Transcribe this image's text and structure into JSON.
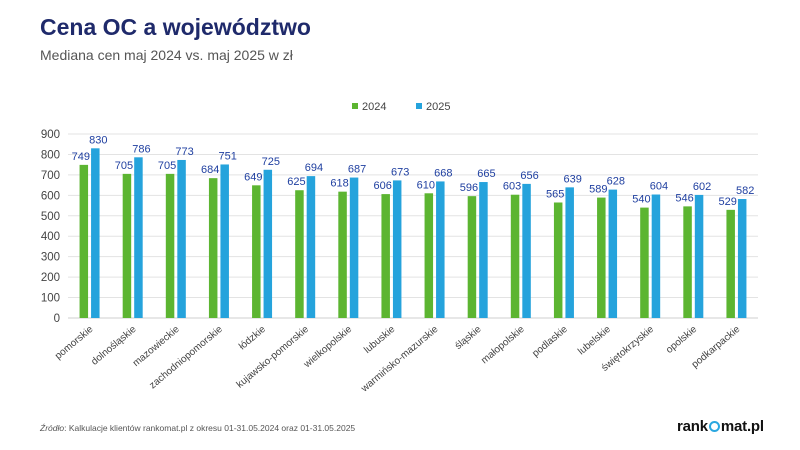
{
  "header": {
    "title": "Cena OC a województwo",
    "subtitle": "Mediana cen maj 2024 vs. maj 2025 w zł"
  },
  "footer": {
    "source_label": "Źródło",
    "source_text": ": Kalkulacje klientów rankomat.pl z okresu 01-31.05.2024 oraz 01-31.05.2025",
    "logo_left": "rank",
    "logo_right": "mat.pl"
  },
  "chart_data": {
    "type": "bar",
    "categories": [
      "pomorskie",
      "dolnośląskie",
      "mazowieckie",
      "zachodniopomorskie",
      "łódzkie",
      "kujawsko-pomorskie",
      "wielkopolskie",
      "lubuskie",
      "warmińsko-mazurskie",
      "śląskie",
      "małopolskie",
      "podlaskie",
      "lubelskie",
      "świętokrzyskie",
      "opolskie",
      "podkarpackie"
    ],
    "series": [
      {
        "name": "2024",
        "color": "#5cb531",
        "values": [
          749,
          705,
          705,
          684,
          649,
          625,
          618,
          606,
          610,
          596,
          603,
          565,
          589,
          540,
          546,
          529
        ]
      },
      {
        "name": "2025",
        "color": "#25a3dc",
        "values": [
          830,
          786,
          773,
          751,
          725,
          694,
          687,
          673,
          668,
          665,
          656,
          639,
          628,
          604,
          602,
          582
        ]
      }
    ],
    "ylim": [
      0,
      900
    ],
    "yticks": [
      0,
      100,
      200,
      300,
      400,
      500,
      600,
      700,
      800,
      900
    ],
    "grid": true,
    "legend": "top-center",
    "label_color": "#1f3fa0"
  }
}
